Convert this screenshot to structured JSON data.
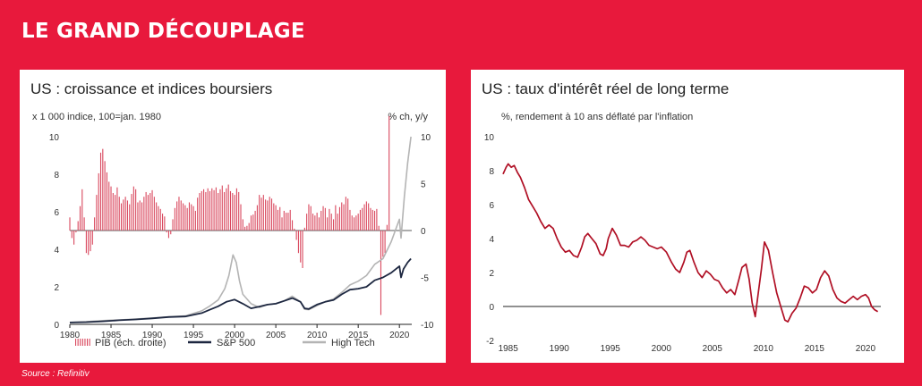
{
  "page": {
    "title": "LE GRAND DÉCOUPLAGE",
    "source": "Source : Refinitiv"
  },
  "colors": {
    "background": "#e8193c",
    "gdp_bars": "#d9485e",
    "sp500": "#1d2740",
    "hightech": "#b4b4b4",
    "real_rate": "#b00f24"
  },
  "chart_data": [
    {
      "type": "combo",
      "title": "US : croissance et indices boursiers",
      "left_axis_label": "x 1 000  indice, 100=jan. 1980",
      "right_axis_label": "% ch, y/y",
      "ylim_left": [
        0,
        10
      ],
      "ylim_right": [
        -10,
        10
      ],
      "xlim": [
        1980,
        2021.5
      ],
      "y_ticks_left": [
        "0",
        "2",
        "4",
        "6",
        "8",
        "10"
      ],
      "y_ticks_right": [
        "-10",
        "-5",
        "0",
        "5",
        "10"
      ],
      "x_ticks": [
        "1980",
        "1985",
        "1990",
        "1995",
        "2000",
        "2005",
        "2010",
        "2015",
        "2020"
      ],
      "legend": [
        "PIB (éch. droite)",
        "S&P 500",
        "High Tech"
      ],
      "series": [
        {
          "name": "PIB (éch. droite)",
          "kind": "bar",
          "axis": "right",
          "x_start": 1980.0,
          "x_step": 0.25,
          "values": [
            1.4,
            -0.8,
            -1.5,
            -0.2,
            1.0,
            2.6,
            4.4,
            1.4,
            -2.4,
            -2.6,
            -2.2,
            -1.5,
            1.4,
            3.8,
            6.1,
            8.3,
            8.7,
            7.4,
            6.2,
            5.2,
            4.7,
            4.0,
            3.8,
            4.6,
            3.6,
            2.9,
            3.3,
            3.6,
            3.2,
            2.8,
            3.9,
            4.7,
            4.4,
            3.0,
            3.2,
            3.0,
            3.6,
            4.1,
            3.8,
            4.0,
            4.3,
            3.6,
            3.0,
            2.6,
            2.3,
            1.8,
            1.5,
            -0.2,
            -0.8,
            -0.4,
            1.2,
            2.4,
            3.1,
            3.6,
            3.2,
            2.9,
            2.7,
            2.4,
            3.0,
            2.8,
            2.6,
            2.1,
            3.5,
            4.0,
            4.2,
            4.4,
            4.1,
            4.5,
            4.2,
            4.5,
            4.3,
            4.6,
            4.0,
            4.4,
            4.8,
            4.1,
            4.5,
            4.9,
            4.2,
            4.0,
            3.8,
            4.5,
            4.1,
            2.8,
            1.2,
            0.4,
            0.5,
            0.8,
            1.6,
            1.7,
            2.1,
            2.7,
            3.8,
            3.5,
            3.8,
            3.3,
            3.2,
            3.6,
            3.4,
            2.9,
            2.7,
            2.2,
            2.5,
            1.4,
            2.1,
            1.9,
            1.9,
            2.2,
            1.1,
            0.2,
            -1.0,
            -2.4,
            -3.4,
            -4.0,
            0.3,
            1.8,
            2.8,
            2.6,
            1.8,
            1.6,
            1.9,
            1.4,
            2.1,
            2.6,
            2.4,
            1.4,
            2.3,
            1.8,
            1.2,
            2.7,
            1.8,
            2.5,
            3.0,
            2.8,
            3.6,
            3.4,
            2.2,
            1.6,
            1.4,
            1.6,
            1.8,
            2.2,
            2.4,
            2.8,
            3.1,
            2.9,
            2.4,
            2.2,
            2.1,
            2.3,
            0.5,
            -9.0,
            -2.8,
            -2.4,
            0.6,
            12.2
          ]
        },
        {
          "name": "S&P 500",
          "kind": "line",
          "axis": "left",
          "x": [
            1980,
            1982,
            1984,
            1986,
            1988,
            1990,
            1992,
            1994,
            1996,
            1997,
            1998,
            1999,
            2000,
            2001,
            2002,
            2003,
            2004,
            2005,
            2006,
            2007,
            2008,
            2008.5,
            2009,
            2010,
            2011,
            2012,
            2013,
            2014,
            2015,
            2016,
            2017,
            2018,
            2019,
            2020.0,
            2020.2,
            2020.5,
            2021,
            2021.4
          ],
          "values": [
            0.1,
            0.12,
            0.16,
            0.22,
            0.26,
            0.32,
            0.39,
            0.42,
            0.6,
            0.78,
            0.96,
            1.2,
            1.32,
            1.1,
            0.85,
            0.95,
            1.05,
            1.1,
            1.25,
            1.4,
            1.2,
            0.85,
            0.82,
            1.05,
            1.2,
            1.3,
            1.6,
            1.85,
            1.9,
            2.0,
            2.35,
            2.5,
            2.75,
            3.1,
            2.5,
            2.95,
            3.3,
            3.5
          ]
        },
        {
          "name": "High Tech",
          "kind": "line",
          "axis": "left",
          "x": [
            1980,
            1982,
            1984,
            1986,
            1988,
            1990,
            1992,
            1994,
            1996,
            1997,
            1998,
            1998.8,
            1999.3,
            1999.8,
            2000.2,
            2000.6,
            2001,
            2002,
            2003,
            2004,
            2005,
            2006,
            2007,
            2008,
            2008.5,
            2009,
            2010,
            2011,
            2012,
            2013,
            2014,
            2015,
            2016,
            2017,
            2018,
            2019,
            2020.0,
            2020.2,
            2020.6,
            2021,
            2021.4
          ],
          "values": [
            0.1,
            0.14,
            0.2,
            0.24,
            0.28,
            0.34,
            0.4,
            0.45,
            0.72,
            0.98,
            1.3,
            1.9,
            2.6,
            3.7,
            3.3,
            2.3,
            1.6,
            1.1,
            0.9,
            1.05,
            1.1,
            1.25,
            1.5,
            1.2,
            0.8,
            0.78,
            1.0,
            1.2,
            1.35,
            1.7,
            2.1,
            2.3,
            2.6,
            3.2,
            3.5,
            4.4,
            5.6,
            4.6,
            6.8,
            8.6,
            10.0
          ]
        }
      ]
    },
    {
      "type": "line",
      "title": "US : taux d'intérêt réel de long terme",
      "ylabel": "%, rendement à 10 ans déflaté par l'inflation",
      "ylim": [
        -2,
        10
      ],
      "xlim": [
        1984.5,
        2021.5
      ],
      "y_ticks": [
        "-2",
        "0",
        "2",
        "4",
        "6",
        "8",
        "10"
      ],
      "x_ticks": [
        "1985",
        "1990",
        "1995",
        "2000",
        "2005",
        "2010",
        "2015",
        "2020"
      ],
      "series": [
        {
          "name": "",
          "x": [
            1984.5,
            1984.8,
            1985.0,
            1985.3,
            1985.6,
            1985.9,
            1986.2,
            1986.6,
            1987.0,
            1987.4,
            1987.8,
            1988.2,
            1988.6,
            1989.0,
            1989.4,
            1989.8,
            1990.2,
            1990.6,
            1991.0,
            1991.4,
            1991.8,
            1992.2,
            1992.5,
            1992.8,
            1993.2,
            1993.6,
            1994.0,
            1994.3,
            1994.6,
            1994.8,
            1995.2,
            1995.6,
            1996.0,
            1996.4,
            1996.8,
            1997.2,
            1997.6,
            1998.0,
            1998.4,
            1998.8,
            1999.2,
            1999.6,
            2000.0,
            2000.5,
            2001.0,
            2001.4,
            2001.8,
            2002.2,
            2002.5,
            2002.8,
            2003.2,
            2003.6,
            2004.0,
            2004.4,
            2004.8,
            2005.2,
            2005.6,
            2006.0,
            2006.4,
            2006.8,
            2007.2,
            2007.6,
            2007.9,
            2008.3,
            2008.6,
            2008.9,
            2009.2,
            2009.5,
            2009.8,
            2010.1,
            2010.5,
            2010.9,
            2011.3,
            2011.7,
            2012.1,
            2012.4,
            2012.8,
            2013.2,
            2013.6,
            2014.0,
            2014.4,
            2014.8,
            2015.2,
            2015.6,
            2016.0,
            2016.4,
            2016.8,
            2017.2,
            2017.6,
            2018.0,
            2018.4,
            2018.8,
            2019.2,
            2019.6,
            2020.0,
            2020.3,
            2020.6,
            2020.9,
            2021.2
          ],
          "values": [
            7.8,
            8.2,
            8.4,
            8.2,
            8.3,
            7.9,
            7.6,
            7.0,
            6.3,
            5.9,
            5.5,
            5.0,
            4.6,
            4.8,
            4.6,
            4.0,
            3.5,
            3.2,
            3.3,
            3.0,
            2.9,
            3.5,
            4.1,
            4.3,
            4.0,
            3.7,
            3.1,
            3.0,
            3.4,
            4.0,
            4.6,
            4.2,
            3.6,
            3.6,
            3.5,
            3.8,
            3.9,
            4.1,
            3.9,
            3.6,
            3.5,
            3.4,
            3.5,
            3.2,
            2.6,
            2.2,
            2.0,
            2.6,
            3.2,
            3.3,
            2.6,
            2.0,
            1.7,
            2.1,
            1.9,
            1.6,
            1.5,
            1.1,
            0.8,
            1.0,
            0.7,
            1.6,
            2.3,
            2.5,
            1.6,
            0.2,
            -0.6,
            0.8,
            2.2,
            3.8,
            3.3,
            2.0,
            0.8,
            0.0,
            -0.8,
            -0.9,
            -0.4,
            -0.1,
            0.5,
            1.2,
            1.1,
            0.8,
            1.0,
            1.7,
            2.1,
            1.8,
            1.0,
            0.5,
            0.3,
            0.2,
            0.4,
            0.6,
            0.4,
            0.6,
            0.7,
            0.5,
            0.0,
            -0.2,
            -0.3
          ]
        }
      ]
    }
  ]
}
